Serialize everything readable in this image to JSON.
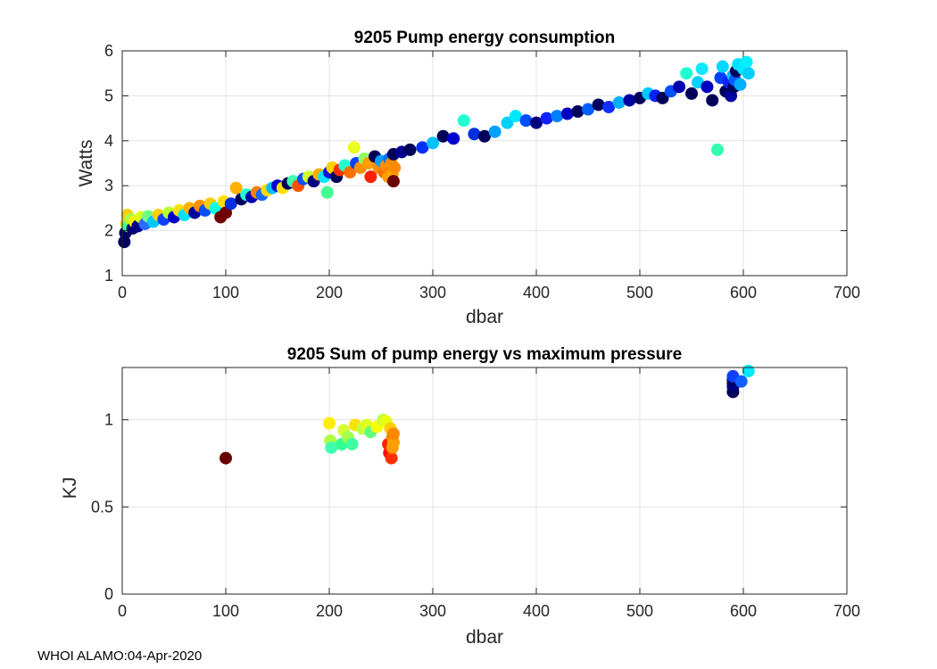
{
  "footer": "WHOI ALAMO:04-Apr-2020",
  "chart_data": [
    {
      "type": "scatter",
      "title": "9205 Pump energy consumption",
      "xlabel": "dbar",
      "ylabel": "Watts",
      "xlim": [
        0,
        700
      ],
      "ylim": [
        1,
        6
      ],
      "xticks": [
        0,
        100,
        200,
        300,
        400,
        500,
        600,
        700
      ],
      "yticks": [
        1,
        2,
        3,
        4,
        5,
        6
      ],
      "grid": true,
      "points": [
        {
          "x": 2,
          "y": 1.75,
          "c": "#00005a"
        },
        {
          "x": 3,
          "y": 1.95,
          "c": "#00005a"
        },
        {
          "x": 4,
          "y": 2.15,
          "c": "#ffd000"
        },
        {
          "x": 5,
          "y": 2.35,
          "c": "#ffd000"
        },
        {
          "x": 6,
          "y": 2.1,
          "c": "#3aff9a"
        },
        {
          "x": 8,
          "y": 2.25,
          "c": "#aaff40"
        },
        {
          "x": 10,
          "y": 2.05,
          "c": "#00006a"
        },
        {
          "x": 12,
          "y": 2.2,
          "c": "#ffee00"
        },
        {
          "x": 15,
          "y": 2.1,
          "c": "#00008a"
        },
        {
          "x": 18,
          "y": 2.3,
          "c": "#d8ff20"
        },
        {
          "x": 22,
          "y": 2.15,
          "c": "#2a6bff"
        },
        {
          "x": 25,
          "y": 2.32,
          "c": "#70ff80"
        },
        {
          "x": 30,
          "y": 2.2,
          "c": "#00c8ff"
        },
        {
          "x": 35,
          "y": 2.35,
          "c": "#ffd000"
        },
        {
          "x": 40,
          "y": 2.25,
          "c": "#1040ff"
        },
        {
          "x": 45,
          "y": 2.4,
          "c": "#b8ff30"
        },
        {
          "x": 50,
          "y": 2.3,
          "c": "#0000c8"
        },
        {
          "x": 55,
          "y": 2.45,
          "c": "#ffe000"
        },
        {
          "x": 60,
          "y": 2.35,
          "c": "#00e0ff"
        },
        {
          "x": 65,
          "y": 2.5,
          "c": "#ffb000"
        },
        {
          "x": 70,
          "y": 2.4,
          "c": "#0000a0"
        },
        {
          "x": 75,
          "y": 2.55,
          "c": "#ff9000"
        },
        {
          "x": 80,
          "y": 2.45,
          "c": "#0050ff"
        },
        {
          "x": 85,
          "y": 2.6,
          "c": "#ffcc00"
        },
        {
          "x": 90,
          "y": 2.5,
          "c": "#10ffe0"
        },
        {
          "x": 95,
          "y": 2.3,
          "c": "#700000"
        },
        {
          "x": 98,
          "y": 2.65,
          "c": "#ffe000"
        },
        {
          "x": 100,
          "y": 2.4,
          "c": "#700000"
        },
        {
          "x": 105,
          "y": 2.6,
          "c": "#0030e0"
        },
        {
          "x": 110,
          "y": 2.95,
          "c": "#ffb000"
        },
        {
          "x": 115,
          "y": 2.7,
          "c": "#00005a"
        },
        {
          "x": 120,
          "y": 2.8,
          "c": "#20ffd0"
        },
        {
          "x": 125,
          "y": 2.75,
          "c": "#0000b0"
        },
        {
          "x": 130,
          "y": 2.85,
          "c": "#ff8000"
        },
        {
          "x": 135,
          "y": 2.8,
          "c": "#1868ff"
        },
        {
          "x": 140,
          "y": 2.9,
          "c": "#ffd800"
        },
        {
          "x": 145,
          "y": 2.95,
          "c": "#00c0ff"
        },
        {
          "x": 150,
          "y": 3.0,
          "c": "#0000d0"
        },
        {
          "x": 155,
          "y": 2.95,
          "c": "#ffe000"
        },
        {
          "x": 160,
          "y": 3.05,
          "c": "#00005a"
        },
        {
          "x": 165,
          "y": 3.1,
          "c": "#40ffb0"
        },
        {
          "x": 170,
          "y": 3.0,
          "c": "#ff5000"
        },
        {
          "x": 175,
          "y": 3.15,
          "c": "#0050ff"
        },
        {
          "x": 180,
          "y": 3.2,
          "c": "#d0ff30"
        },
        {
          "x": 185,
          "y": 3.1,
          "c": "#000080"
        },
        {
          "x": 190,
          "y": 3.25,
          "c": "#ffb000"
        },
        {
          "x": 195,
          "y": 3.2,
          "c": "#00e8ff"
        },
        {
          "x": 198,
          "y": 2.85,
          "c": "#40ff90"
        },
        {
          "x": 200,
          "y": 3.3,
          "c": "#1010e0"
        },
        {
          "x": 203,
          "y": 3.4,
          "c": "#ffd000"
        },
        {
          "x": 207,
          "y": 3.2,
          "c": "#00005a"
        },
        {
          "x": 210,
          "y": 3.35,
          "c": "#ff3000"
        },
        {
          "x": 215,
          "y": 3.45,
          "c": "#20ffd0"
        },
        {
          "x": 220,
          "y": 3.3,
          "c": "#ff7000"
        },
        {
          "x": 224,
          "y": 3.85,
          "c": "#e8ff20"
        },
        {
          "x": 226,
          "y": 3.5,
          "c": "#0040ff"
        },
        {
          "x": 230,
          "y": 3.4,
          "c": "#ff9000"
        },
        {
          "x": 234,
          "y": 3.6,
          "c": "#90ff60"
        },
        {
          "x": 238,
          "y": 3.5,
          "c": "#ffa000"
        },
        {
          "x": 240,
          "y": 3.2,
          "c": "#ff2000"
        },
        {
          "x": 244,
          "y": 3.65,
          "c": "#00005a"
        },
        {
          "x": 248,
          "y": 3.4,
          "c": "#ff8c00"
        },
        {
          "x": 250,
          "y": 3.55,
          "c": "#00a0ff"
        },
        {
          "x": 253,
          "y": 3.3,
          "c": "#ff7000"
        },
        {
          "x": 255,
          "y": 3.45,
          "c": "#ff9000"
        },
        {
          "x": 257,
          "y": 3.2,
          "c": "#ff9c00"
        },
        {
          "x": 258,
          "y": 3.6,
          "c": "#0070ff"
        },
        {
          "x": 259,
          "y": 3.35,
          "c": "#ff8000"
        },
        {
          "x": 260,
          "y": 3.5,
          "c": "#ff9000"
        },
        {
          "x": 261,
          "y": 3.25,
          "c": "#ffa800"
        },
        {
          "x": 262,
          "y": 3.1,
          "c": "#6a0000"
        },
        {
          "x": 263,
          "y": 3.4,
          "c": "#ff8a00"
        },
        {
          "x": 262,
          "y": 3.7,
          "c": "#00005a"
        },
        {
          "x": 270,
          "y": 3.75,
          "c": "#000090"
        },
        {
          "x": 278,
          "y": 3.8,
          "c": "#00005a"
        },
        {
          "x": 290,
          "y": 3.85,
          "c": "#0030ff"
        },
        {
          "x": 300,
          "y": 3.95,
          "c": "#00c0ff"
        },
        {
          "x": 310,
          "y": 4.1,
          "c": "#00005a"
        },
        {
          "x": 320,
          "y": 4.05,
          "c": "#0000d0"
        },
        {
          "x": 330,
          "y": 4.45,
          "c": "#20ffd0"
        },
        {
          "x": 340,
          "y": 4.15,
          "c": "#0030e0"
        },
        {
          "x": 350,
          "y": 4.1,
          "c": "#00005a"
        },
        {
          "x": 360,
          "y": 4.2,
          "c": "#00a0ff"
        },
        {
          "x": 372,
          "y": 4.4,
          "c": "#00d0ff"
        },
        {
          "x": 380,
          "y": 4.55,
          "c": "#00e8ff"
        },
        {
          "x": 390,
          "y": 4.45,
          "c": "#0050ff"
        },
        {
          "x": 400,
          "y": 4.4,
          "c": "#000080"
        },
        {
          "x": 410,
          "y": 4.5,
          "c": "#1020ff"
        },
        {
          "x": 420,
          "y": 4.55,
          "c": "#0080ff"
        },
        {
          "x": 430,
          "y": 4.6,
          "c": "#0000c0"
        },
        {
          "x": 440,
          "y": 4.65,
          "c": "#00005a"
        },
        {
          "x": 450,
          "y": 4.7,
          "c": "#0060ff"
        },
        {
          "x": 460,
          "y": 4.8,
          "c": "#00005a"
        },
        {
          "x": 470,
          "y": 4.75,
          "c": "#1030ff"
        },
        {
          "x": 480,
          "y": 4.85,
          "c": "#00b0ff"
        },
        {
          "x": 490,
          "y": 4.9,
          "c": "#0000a0"
        },
        {
          "x": 500,
          "y": 4.95,
          "c": "#00005a"
        },
        {
          "x": 508,
          "y": 5.05,
          "c": "#00c8ff"
        },
        {
          "x": 515,
          "y": 5.0,
          "c": "#0020ff"
        },
        {
          "x": 522,
          "y": 4.95,
          "c": "#00005a"
        },
        {
          "x": 530,
          "y": 5.1,
          "c": "#0050ff"
        },
        {
          "x": 538,
          "y": 5.2,
          "c": "#0000b0"
        },
        {
          "x": 545,
          "y": 5.5,
          "c": "#20ffd0"
        },
        {
          "x": 550,
          "y": 5.05,
          "c": "#00005a"
        },
        {
          "x": 556,
          "y": 5.3,
          "c": "#00d0ff"
        },
        {
          "x": 560,
          "y": 5.6,
          "c": "#10e8ff"
        },
        {
          "x": 565,
          "y": 5.2,
          "c": "#0000c0"
        },
        {
          "x": 570,
          "y": 4.9,
          "c": "#00005a"
        },
        {
          "x": 575,
          "y": 3.8,
          "c": "#30ffb0"
        },
        {
          "x": 578,
          "y": 5.4,
          "c": "#0040ff"
        },
        {
          "x": 580,
          "y": 5.65,
          "c": "#00d8ff"
        },
        {
          "x": 583,
          "y": 5.1,
          "c": "#00005a"
        },
        {
          "x": 586,
          "y": 5.3,
          "c": "#1020ff"
        },
        {
          "x": 588,
          "y": 5.0,
          "c": "#0000a0"
        },
        {
          "x": 590,
          "y": 5.45,
          "c": "#00c0ff"
        },
        {
          "x": 591,
          "y": 5.2,
          "c": "#00005a"
        },
        {
          "x": 592,
          "y": 5.35,
          "c": "#0060ff"
        },
        {
          "x": 593,
          "y": 5.55,
          "c": "#00005a"
        },
        {
          "x": 595,
          "y": 5.7,
          "c": "#00e0ff"
        },
        {
          "x": 597,
          "y": 5.25,
          "c": "#00b0ff"
        },
        {
          "x": 600,
          "y": 5.6,
          "c": "#00e8ff"
        },
        {
          "x": 603,
          "y": 5.75,
          "c": "#00f0ff"
        },
        {
          "x": 605,
          "y": 5.5,
          "c": "#00d0ff"
        }
      ]
    },
    {
      "type": "scatter",
      "title": "9205 Sum of pump energy vs maximum pressure",
      "xlabel": "dbar",
      "ylabel": "KJ",
      "xlim": [
        0,
        700
      ],
      "ylim": [
        0,
        1.3
      ],
      "xticks": [
        0,
        100,
        200,
        300,
        400,
        500,
        600,
        700
      ],
      "yticks": [
        0,
        0.5,
        1
      ],
      "ytick_labels": [
        "0",
        "0.5",
        "1"
      ],
      "grid": true,
      "points": [
        {
          "x": 100,
          "y": 0.78,
          "c": "#6a0000"
        },
        {
          "x": 200,
          "y": 0.98,
          "c": "#ffee00"
        },
        {
          "x": 201,
          "y": 0.88,
          "c": "#b0ff40"
        },
        {
          "x": 202,
          "y": 0.84,
          "c": "#40ffb0"
        },
        {
          "x": 212,
          "y": 0.86,
          "c": "#30ff90"
        },
        {
          "x": 214,
          "y": 0.94,
          "c": "#d8ff30"
        },
        {
          "x": 218,
          "y": 0.9,
          "c": "#a0ff50"
        },
        {
          "x": 222,
          "y": 0.86,
          "c": "#40ffa0"
        },
        {
          "x": 225,
          "y": 0.97,
          "c": "#ffe000"
        },
        {
          "x": 232,
          "y": 0.95,
          "c": "#c0ff40"
        },
        {
          "x": 236,
          "y": 0.97,
          "c": "#e0ff20"
        },
        {
          "x": 240,
          "y": 0.93,
          "c": "#60ff80"
        },
        {
          "x": 246,
          "y": 0.96,
          "c": "#f8ff00"
        },
        {
          "x": 252,
          "y": 1.0,
          "c": "#c0ff40"
        },
        {
          "x": 255,
          "y": 0.99,
          "c": "#e8ff10"
        },
        {
          "x": 257,
          "y": 0.86,
          "c": "#ff2000"
        },
        {
          "x": 258,
          "y": 0.81,
          "c": "#ff1000"
        },
        {
          "x": 259,
          "y": 0.95,
          "c": "#ffcc00"
        },
        {
          "x": 260,
          "y": 0.78,
          "c": "#ff3000"
        },
        {
          "x": 261,
          "y": 0.9,
          "c": "#ff8000"
        },
        {
          "x": 261,
          "y": 0.84,
          "c": "#ff9a00"
        },
        {
          "x": 262,
          "y": 0.87,
          "c": "#ffa000"
        },
        {
          "x": 262,
          "y": 0.92,
          "c": "#ff8800"
        },
        {
          "x": 590,
          "y": 1.16,
          "c": "#00005a"
        },
        {
          "x": 590,
          "y": 1.19,
          "c": "#00006a"
        },
        {
          "x": 590,
          "y": 1.21,
          "c": "#000080"
        },
        {
          "x": 590,
          "y": 1.23,
          "c": "#00005a"
        },
        {
          "x": 590,
          "y": 1.25,
          "c": "#1040ff"
        },
        {
          "x": 598,
          "y": 1.22,
          "c": "#1060ff"
        },
        {
          "x": 605,
          "y": 1.28,
          "c": "#00e8ff"
        }
      ]
    }
  ]
}
